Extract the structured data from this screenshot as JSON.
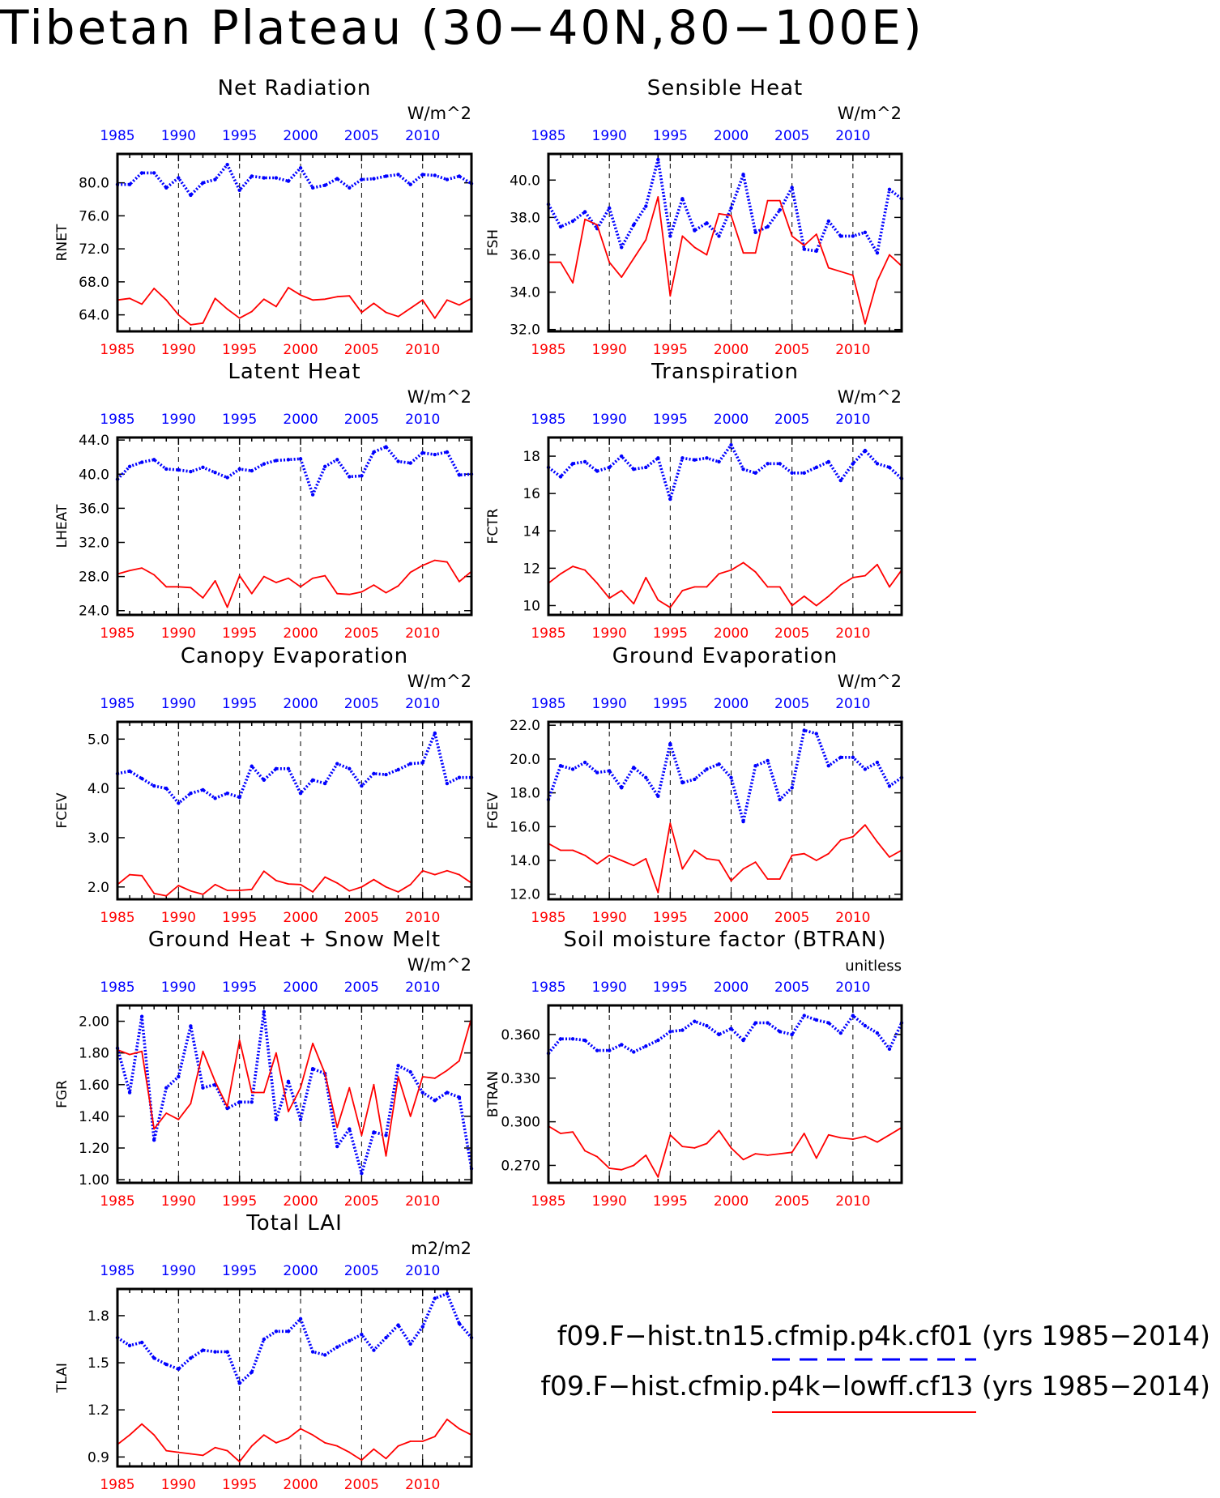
{
  "title": "Tibetan Plateau (30−40N,80−100E)",
  "x_ticks": [
    1985,
    1990,
    1995,
    2000,
    2005,
    2010
  ],
  "colors": {
    "case1": "#0000ff",
    "case2": "#ff0000",
    "frame": "#000000"
  },
  "legend": [
    {
      "label": "f09.F−hist.tn15.cfmip.p4k.cf01 (yrs 1985−2014)",
      "color": "#0000ff",
      "style": "dashed"
    },
    {
      "label": "f09.F−hist.cfmip.p4k−lowff.cf13 (yrs 1985−2014)",
      "color": "#ff0000",
      "style": "solid"
    }
  ],
  "chart_data": [
    {
      "type": "line",
      "title": "Net Radiation",
      "ylabel": "RNET",
      "units": "W/m^2",
      "ylim": [
        62.0,
        83.5
      ],
      "yticks": [
        64.0,
        68.0,
        72.0,
        76.0,
        80.0
      ],
      "ytick_decimals": 1,
      "x": [
        1985,
        1986,
        1987,
        1988,
        1989,
        1990,
        1991,
        1992,
        1993,
        1994,
        1995,
        1996,
        1997,
        1998,
        1999,
        2000,
        2001,
        2002,
        2003,
        2004,
        2005,
        2006,
        2007,
        2008,
        2009,
        2010,
        2011,
        2012,
        2013,
        2014
      ],
      "series": [
        {
          "color": "blue",
          "values": [
            79.8,
            79.8,
            81.2,
            81.2,
            79.4,
            80.6,
            78.5,
            80.0,
            80.4,
            82.2,
            79.1,
            80.8,
            80.6,
            80.6,
            80.2,
            81.8,
            79.4,
            79.7,
            80.5,
            79.4,
            80.4,
            80.5,
            80.8,
            81.0,
            79.8,
            81.0,
            80.9,
            80.4,
            80.8,
            79.9
          ]
        },
        {
          "color": "red",
          "values": [
            65.8,
            66.0,
            65.3,
            67.2,
            65.8,
            64.0,
            62.8,
            63.0,
            66.0,
            64.7,
            63.6,
            64.4,
            65.9,
            65.0,
            67.3,
            66.4,
            65.8,
            65.9,
            66.2,
            66.3,
            64.3,
            65.4,
            64.3,
            63.8,
            64.8,
            65.8,
            63.6,
            65.8,
            65.2,
            66.0
          ]
        }
      ]
    },
    {
      "type": "line",
      "title": "Sensible Heat",
      "ylabel": "FSH",
      "units": "W/m^2",
      "ylim": [
        31.9,
        41.4
      ],
      "yticks": [
        32.0,
        34.0,
        36.0,
        38.0,
        40.0
      ],
      "ytick_decimals": 1,
      "x": [
        1985,
        1986,
        1987,
        1988,
        1989,
        1990,
        1991,
        1992,
        1993,
        1994,
        1995,
        1996,
        1997,
        1998,
        1999,
        2000,
        2001,
        2002,
        2003,
        2004,
        2005,
        2006,
        2007,
        2008,
        2009,
        2010,
        2011,
        2012,
        2013,
        2014
      ],
      "series": [
        {
          "color": "blue",
          "values": [
            38.7,
            37.5,
            37.8,
            38.3,
            37.4,
            38.5,
            36.4,
            37.6,
            38.6,
            41.1,
            37.0,
            39.0,
            37.3,
            37.7,
            37.0,
            38.5,
            40.3,
            37.2,
            37.5,
            38.4,
            39.6,
            36.3,
            36.2,
            37.8,
            37.0,
            37.0,
            37.2,
            36.1,
            39.5,
            39.0
          ]
        },
        {
          "color": "red",
          "values": [
            35.6,
            35.6,
            34.5,
            37.9,
            37.6,
            35.6,
            34.8,
            35.8,
            36.8,
            39.1,
            33.8,
            37.0,
            36.4,
            36.0,
            38.2,
            38.1,
            36.1,
            36.1,
            38.9,
            38.9,
            37.0,
            36.5,
            37.1,
            35.3,
            35.1,
            34.9,
            32.3,
            34.6,
            36.0,
            35.4
          ]
        }
      ]
    },
    {
      "type": "line",
      "title": "Latent Heat",
      "ylabel": "LHEAT",
      "units": "W/m^2",
      "ylim": [
        23.5,
        44.3
      ],
      "yticks": [
        24.0,
        28.0,
        32.0,
        36.0,
        40.0,
        44.0
      ],
      "ytick_decimals": 1,
      "x": [
        1985,
        1986,
        1987,
        1988,
        1989,
        1990,
        1991,
        1992,
        1993,
        1994,
        1995,
        1996,
        1997,
        1998,
        1999,
        2000,
        2001,
        2002,
        2003,
        2004,
        2005,
        2006,
        2007,
        2008,
        2009,
        2010,
        2011,
        2012,
        2013,
        2014
      ],
      "series": [
        {
          "color": "blue",
          "values": [
            39.4,
            40.9,
            41.4,
            41.7,
            40.6,
            40.5,
            40.3,
            40.8,
            40.2,
            39.6,
            40.6,
            40.4,
            41.2,
            41.6,
            41.7,
            41.8,
            37.6,
            40.9,
            41.7,
            39.7,
            39.8,
            42.6,
            43.2,
            41.5,
            41.3,
            42.5,
            42.3,
            42.6,
            39.9,
            40.0
          ]
        },
        {
          "color": "red",
          "values": [
            28.3,
            28.7,
            29.0,
            28.2,
            26.8,
            26.8,
            26.7,
            25.5,
            27.5,
            24.4,
            28.1,
            26.0,
            28.0,
            27.3,
            27.8,
            26.8,
            27.8,
            28.1,
            26.0,
            25.9,
            26.2,
            27.0,
            26.1,
            26.9,
            28.5,
            29.3,
            29.9,
            29.7,
            27.4,
            28.6
          ]
        }
      ]
    },
    {
      "type": "line",
      "title": "Transpiration",
      "ylabel": "FCTR",
      "units": "W/m^2",
      "ylim": [
        9.5,
        19.0
      ],
      "yticks": [
        10,
        12,
        14,
        16,
        18
      ],
      "ytick_decimals": 0,
      "x": [
        1985,
        1986,
        1987,
        1988,
        1989,
        1990,
        1991,
        1992,
        1993,
        1994,
        1995,
        1996,
        1997,
        1998,
        1999,
        2000,
        2001,
        2002,
        2003,
        2004,
        2005,
        2006,
        2007,
        2008,
        2009,
        2010,
        2011,
        2012,
        2013,
        2014
      ],
      "series": [
        {
          "color": "blue",
          "values": [
            17.4,
            16.9,
            17.6,
            17.7,
            17.2,
            17.4,
            18.0,
            17.3,
            17.4,
            17.9,
            15.7,
            17.9,
            17.8,
            17.9,
            17.7,
            18.6,
            17.3,
            17.1,
            17.6,
            17.6,
            17.1,
            17.1,
            17.4,
            17.7,
            16.7,
            17.6,
            18.3,
            17.6,
            17.4,
            16.8
          ]
        },
        {
          "color": "red",
          "values": [
            11.2,
            11.7,
            12.1,
            11.9,
            11.2,
            10.4,
            10.8,
            10.1,
            11.5,
            10.3,
            9.9,
            10.8,
            11.0,
            11.0,
            11.7,
            11.9,
            12.3,
            11.8,
            11.0,
            11.0,
            10.0,
            10.5,
            10.0,
            10.5,
            11.1,
            11.5,
            11.6,
            12.2,
            11.0,
            11.9
          ]
        }
      ]
    },
    {
      "type": "line",
      "title": "Canopy Evaporation",
      "ylabel": "FCEV",
      "units": "W/m^2",
      "ylim": [
        1.75,
        5.35
      ],
      "yticks": [
        2.0,
        3.0,
        4.0,
        5.0
      ],
      "ytick_decimals": 1,
      "x": [
        1985,
        1986,
        1987,
        1988,
        1989,
        1990,
        1991,
        1992,
        1993,
        1994,
        1995,
        1996,
        1997,
        1998,
        1999,
        2000,
        2001,
        2002,
        2003,
        2004,
        2005,
        2006,
        2007,
        2008,
        2009,
        2010,
        2011,
        2012,
        2013,
        2014
      ],
      "series": [
        {
          "color": "blue",
          "values": [
            4.3,
            4.35,
            4.2,
            4.05,
            4.0,
            3.7,
            3.9,
            3.97,
            3.8,
            3.9,
            3.82,
            4.45,
            4.17,
            4.4,
            4.4,
            3.9,
            4.17,
            4.1,
            4.5,
            4.4,
            4.05,
            4.3,
            4.28,
            4.38,
            4.5,
            4.52,
            5.12,
            4.1,
            4.22,
            4.22
          ]
        },
        {
          "color": "red",
          "values": [
            2.05,
            2.25,
            2.23,
            1.87,
            1.82,
            2.03,
            1.92,
            1.85,
            2.05,
            1.93,
            1.93,
            1.95,
            2.32,
            2.13,
            2.06,
            2.05,
            1.9,
            2.2,
            2.08,
            1.92,
            2.0,
            2.15,
            2.0,
            1.9,
            2.05,
            2.33,
            2.25,
            2.33,
            2.25,
            2.08
          ]
        }
      ]
    },
    {
      "type": "line",
      "title": "Ground Evaporation",
      "ylabel": "FGEV",
      "units": "W/m^2",
      "ylim": [
        11.7,
        22.2
      ],
      "yticks": [
        12.0,
        14.0,
        16.0,
        18.0,
        20.0,
        22.0
      ],
      "ytick_decimals": 1,
      "x": [
        1985,
        1986,
        1987,
        1988,
        1989,
        1990,
        1991,
        1992,
        1993,
        1994,
        1995,
        1996,
        1997,
        1998,
        1999,
        2000,
        2001,
        2002,
        2003,
        2004,
        2005,
        2006,
        2007,
        2008,
        2009,
        2010,
        2011,
        2012,
        2013,
        2014
      ],
      "series": [
        {
          "color": "blue",
          "values": [
            17.6,
            19.6,
            19.4,
            19.8,
            19.2,
            19.3,
            18.3,
            19.5,
            18.9,
            17.8,
            20.9,
            18.6,
            18.8,
            19.4,
            19.7,
            18.9,
            16.3,
            19.6,
            19.9,
            17.6,
            18.3,
            21.7,
            21.5,
            19.6,
            20.1,
            20.1,
            19.4,
            19.8,
            18.4,
            18.9
          ]
        },
        {
          "color": "red",
          "values": [
            15.0,
            14.6,
            14.6,
            14.3,
            13.8,
            14.3,
            14.0,
            13.7,
            14.1,
            12.1,
            16.2,
            13.5,
            14.6,
            14.1,
            14.0,
            12.8,
            13.5,
            13.9,
            12.9,
            12.9,
            14.3,
            14.4,
            14.0,
            14.4,
            15.2,
            15.4,
            16.1,
            15.1,
            14.2,
            14.6
          ]
        }
      ]
    },
    {
      "type": "line",
      "title": "Ground Heat + Snow Melt",
      "ylabel": "FGR",
      "units": "W/m^2",
      "ylim": [
        0.98,
        2.1
      ],
      "yticks": [
        1.0,
        1.2,
        1.4,
        1.6,
        1.8,
        2.0
      ],
      "ytick_decimals": 2,
      "x": [
        1985,
        1986,
        1987,
        1988,
        1989,
        1990,
        1991,
        1992,
        1993,
        1994,
        1995,
        1996,
        1997,
        1998,
        1999,
        2000,
        2001,
        2002,
        2003,
        2004,
        2005,
        2006,
        2007,
        2008,
        2009,
        2010,
        2011,
        2012,
        2013,
        2014
      ],
      "series": [
        {
          "color": "blue",
          "values": [
            1.83,
            1.55,
            2.03,
            1.25,
            1.58,
            1.65,
            1.97,
            1.58,
            1.6,
            1.45,
            1.49,
            1.49,
            2.06,
            1.38,
            1.62,
            1.38,
            1.7,
            1.67,
            1.21,
            1.32,
            1.04,
            1.3,
            1.28,
            1.72,
            1.68,
            1.55,
            1.5,
            1.55,
            1.52,
            1.07
          ]
        },
        {
          "color": "red",
          "values": [
            1.82,
            1.79,
            1.81,
            1.32,
            1.42,
            1.38,
            1.48,
            1.81,
            1.62,
            1.46,
            1.88,
            1.55,
            1.55,
            1.8,
            1.43,
            1.58,
            1.86,
            1.67,
            1.33,
            1.58,
            1.28,
            1.6,
            1.15,
            1.65,
            1.4,
            1.65,
            1.64,
            1.69,
            1.75,
            2.02
          ]
        }
      ]
    },
    {
      "type": "line",
      "title": "Soil moisture factor (BTRAN)",
      "ylabel": "BTRAN",
      "units": "unitless",
      "ylim": [
        0.258,
        0.38
      ],
      "yticks": [
        0.27,
        0.3,
        0.33,
        0.36
      ],
      "ytick_decimals": 3,
      "x": [
        1985,
        1986,
        1987,
        1988,
        1989,
        1990,
        1991,
        1992,
        1993,
        1994,
        1995,
        1996,
        1997,
        1998,
        1999,
        2000,
        2001,
        2002,
        2003,
        2004,
        2005,
        2006,
        2007,
        2008,
        2009,
        2010,
        2011,
        2012,
        2013,
        2014
      ],
      "series": [
        {
          "color": "blue",
          "values": [
            0.347,
            0.357,
            0.357,
            0.356,
            0.349,
            0.349,
            0.353,
            0.348,
            0.352,
            0.356,
            0.362,
            0.363,
            0.369,
            0.366,
            0.36,
            0.364,
            0.356,
            0.368,
            0.368,
            0.362,
            0.36,
            0.373,
            0.37,
            0.368,
            0.361,
            0.373,
            0.366,
            0.361,
            0.35,
            0.368
          ]
        },
        {
          "color": "red",
          "values": [
            0.297,
            0.292,
            0.293,
            0.28,
            0.276,
            0.268,
            0.267,
            0.27,
            0.277,
            0.262,
            0.291,
            0.283,
            0.282,
            0.285,
            0.294,
            0.282,
            0.274,
            0.278,
            0.277,
            0.278,
            0.279,
            0.292,
            0.275,
            0.291,
            0.289,
            0.288,
            0.29,
            0.286,
            0.291,
            0.296
          ]
        }
      ]
    },
    {
      "type": "line",
      "title": "Total LAI",
      "ylabel": "TLAI",
      "units": "m2/m2",
      "ylim": [
        0.84,
        1.97
      ],
      "yticks": [
        0.9,
        1.2,
        1.5,
        1.8
      ],
      "ytick_decimals": 1,
      "x": [
        1985,
        1986,
        1987,
        1988,
        1989,
        1990,
        1991,
        1992,
        1993,
        1994,
        1995,
        1996,
        1997,
        1998,
        1999,
        2000,
        2001,
        2002,
        2003,
        2004,
        2005,
        2006,
        2007,
        2008,
        2009,
        2010,
        2011,
        2012,
        2013,
        2014
      ],
      "series": [
        {
          "color": "blue",
          "values": [
            1.66,
            1.61,
            1.63,
            1.53,
            1.49,
            1.46,
            1.53,
            1.58,
            1.57,
            1.57,
            1.37,
            1.44,
            1.65,
            1.7,
            1.7,
            1.78,
            1.57,
            1.55,
            1.6,
            1.64,
            1.68,
            1.58,
            1.66,
            1.74,
            1.62,
            1.73,
            1.91,
            1.94,
            1.75,
            1.66
          ]
        },
        {
          "color": "red",
          "values": [
            0.98,
            1.04,
            1.11,
            1.04,
            0.94,
            0.93,
            0.92,
            0.91,
            0.96,
            0.94,
            0.87,
            0.97,
            1.04,
            0.99,
            1.02,
            1.08,
            1.04,
            0.99,
            0.97,
            0.93,
            0.88,
            0.95,
            0.89,
            0.97,
            1.0,
            1.0,
            1.03,
            1.14,
            1.08,
            1.04
          ]
        }
      ]
    }
  ]
}
